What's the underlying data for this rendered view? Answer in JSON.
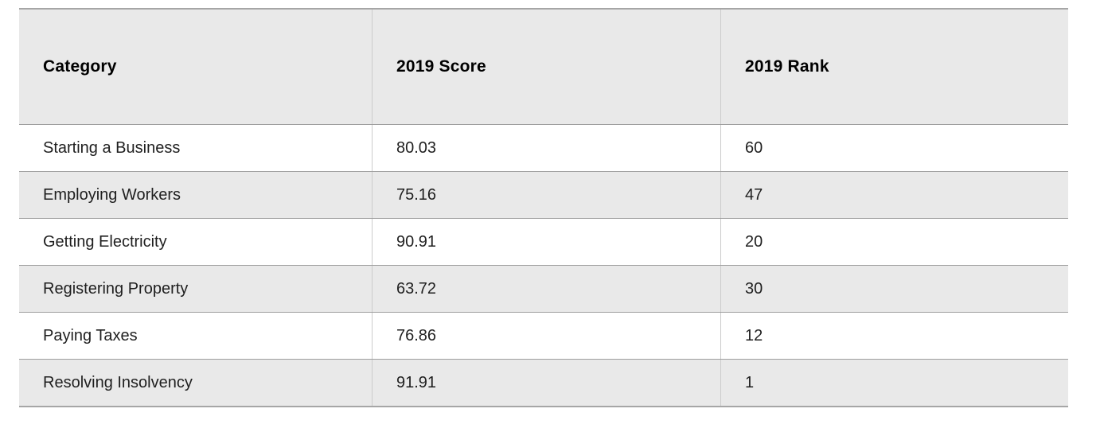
{
  "table": {
    "columns": [
      "Category",
      "2019 Score",
      "2019 Rank"
    ],
    "rows": [
      {
        "category": "Starting a Business",
        "score": "80.03",
        "rank": "60"
      },
      {
        "category": "Employing Workers",
        "score": "75.16",
        "rank": "47"
      },
      {
        "category": "Getting Electricity",
        "score": "90.91",
        "rank": "20"
      },
      {
        "category": "Registering Property",
        "score": "63.72",
        "rank": "30"
      },
      {
        "category": "Paying Taxes",
        "score": "76.86",
        "rank": "12"
      },
      {
        "category": "Resolving Insolvency",
        "score": "91.91",
        "rank": "1"
      }
    ]
  },
  "colors": {
    "header_bg": "#e9e9e9",
    "stripe_bg": "#e9e9e9",
    "row_bg": "#ffffff",
    "horizontal_border": "#9e9e9e",
    "outer_border": "#a6a6a6",
    "vertical_border": "#cbcbcb",
    "header_text": "#000000",
    "body_text": "#1f1f1f"
  },
  "chart_data": {
    "type": "table",
    "title": "",
    "columns": [
      "Category",
      "2019 Score",
      "2019 Rank"
    ],
    "categories": [
      "Starting a Business",
      "Employing Workers",
      "Getting Electricity",
      "Registering Property",
      "Paying Taxes",
      "Resolving Insolvency"
    ],
    "series": [
      {
        "name": "2019 Score",
        "values": [
          80.03,
          75.16,
          90.91,
          63.72,
          76.86,
          91.91
        ]
      },
      {
        "name": "2019 Rank",
        "values": [
          60,
          47,
          20,
          30,
          12,
          1
        ]
      }
    ],
    "layout": {
      "grid": "row-and-column-rules",
      "zebra_striping": true,
      "header_position": "top"
    }
  }
}
